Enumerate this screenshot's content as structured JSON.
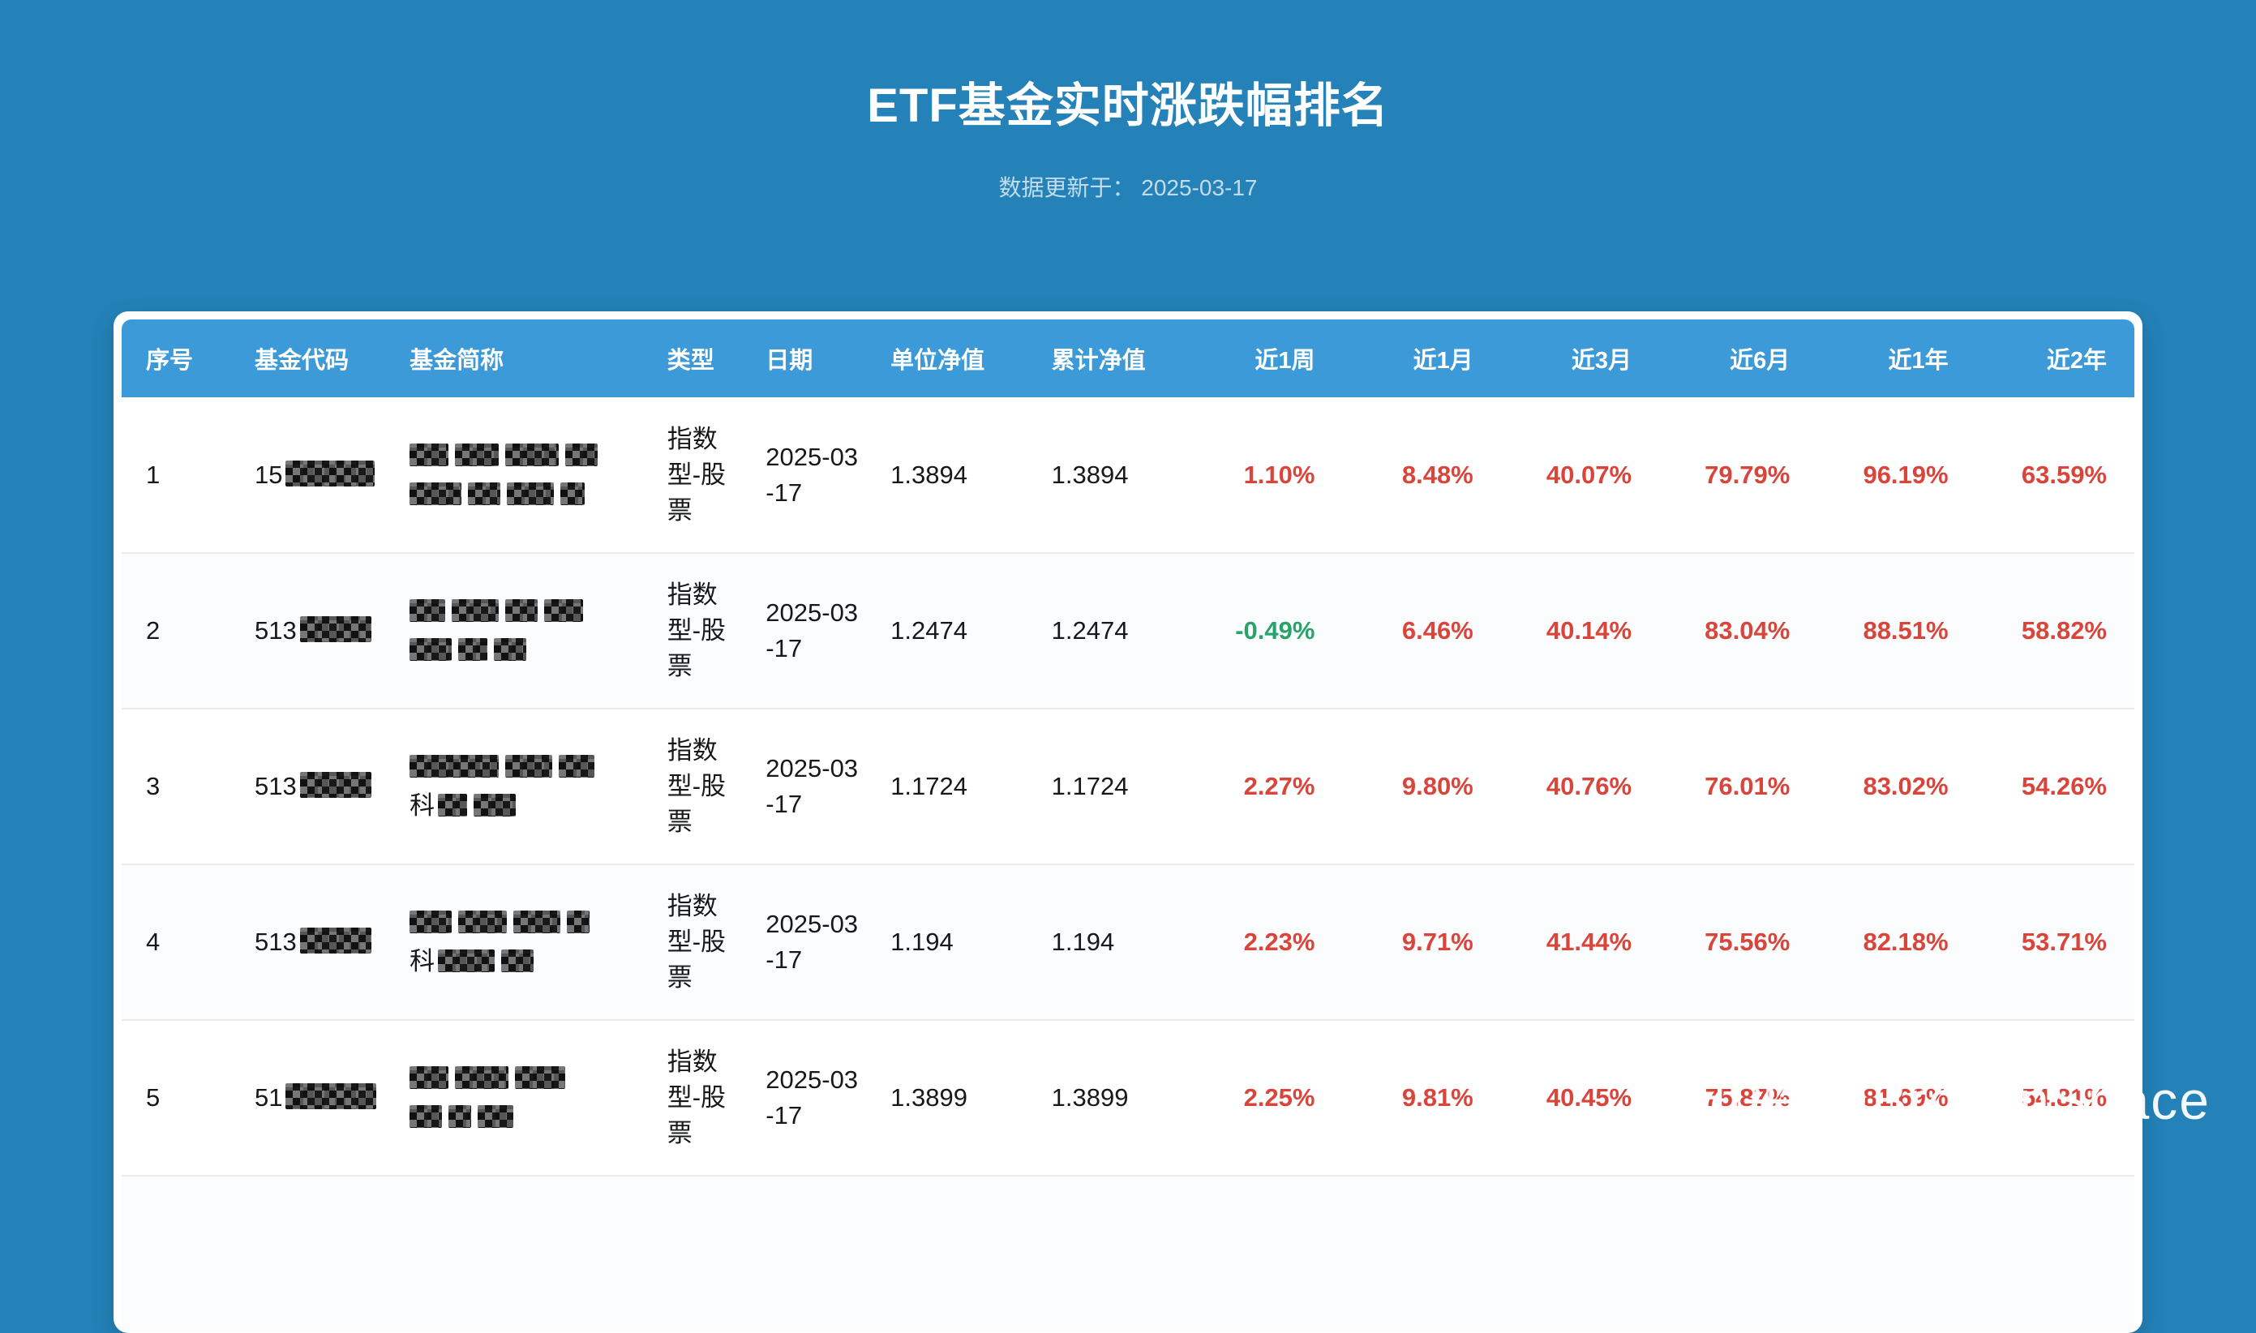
{
  "page": {
    "title": "ETF基金实时涨跌幅排名",
    "updated": "数据更新于： 2025-03-17",
    "watermark": "知乎 @BrokenSpace"
  },
  "colors": {
    "positive": "#d9453b",
    "negative": "#28a36a",
    "header_bg": "#3d9ad8",
    "page_bg": "#2482b8"
  },
  "table": {
    "headers": [
      "序号",
      "基金代码",
      "基金简称",
      "类型",
      "日期",
      "单位净值",
      "累计净值",
      "近1周",
      "近1月",
      "近3月",
      "近6月",
      "近1年",
      "近2年"
    ],
    "rows": [
      {
        "rank": "1",
        "code_visible": "15",
        "code_redact_w": 110,
        "name_lines": [
          {
            "prefix": "",
            "segments": [
              48,
              54,
              66,
              40
            ]
          },
          {
            "prefix": "",
            "segments": [
              64,
              40,
              58,
              30
            ]
          }
        ],
        "type": "指数型-股票",
        "date": "2025-03-17",
        "unit_nav": "1.3894",
        "acc_nav": "1.3894",
        "returns": [
          "1.10%",
          "8.48%",
          "40.07%",
          "79.79%",
          "96.19%",
          "63.59%"
        ]
      },
      {
        "rank": "2",
        "code_visible": "513",
        "code_redact_w": 88,
        "name_lines": [
          {
            "prefix": "",
            "segments": [
              44,
              58,
              40,
              48
            ]
          },
          {
            "prefix": "",
            "segments": [
              52,
              36,
              40
            ]
          }
        ],
        "type": "指数型-股票",
        "date": "2025-03-17",
        "unit_nav": "1.2474",
        "acc_nav": "1.2474",
        "returns": [
          "-0.49%",
          "6.46%",
          "40.14%",
          "83.04%",
          "88.51%",
          "58.82%"
        ]
      },
      {
        "rank": "3",
        "code_visible": "513",
        "code_redact_w": 88,
        "name_lines": [
          {
            "prefix": "",
            "segments": [
              110,
              58,
              44
            ]
          },
          {
            "prefix": "科",
            "segments": [
              36,
              52
            ]
          }
        ],
        "type": "指数型-股票",
        "date": "2025-03-17",
        "unit_nav": "1.1724",
        "acc_nav": "1.1724",
        "returns": [
          "2.27%",
          "9.80%",
          "40.76%",
          "76.01%",
          "83.02%",
          "54.26%"
        ]
      },
      {
        "rank": "4",
        "code_visible": "513",
        "code_redact_w": 88,
        "name_lines": [
          {
            "prefix": "",
            "segments": [
              52,
              60,
              58,
              28
            ]
          },
          {
            "prefix": "科",
            "segments": [
              70,
              40
            ]
          }
        ],
        "type": "指数型-股票",
        "date": "2025-03-17",
        "unit_nav": "1.194",
        "acc_nav": "1.194",
        "returns": [
          "2.23%",
          "9.71%",
          "41.44%",
          "75.56%",
          "82.18%",
          "53.71%"
        ]
      },
      {
        "rank": "5",
        "code_visible": "51",
        "code_redact_w": 112,
        "name_lines": [
          {
            "prefix": "",
            "segments": [
              48,
              66,
              62
            ]
          },
          {
            "prefix": "",
            "segments": [
              40,
              28,
              44
            ]
          }
        ],
        "type": "指数型-股票",
        "date": "2025-03-17",
        "unit_nav": "1.3899",
        "acc_nav": "1.3899",
        "returns": [
          "2.25%",
          "9.81%",
          "40.45%",
          "75.87%",
          "81.69%",
          "54.81%"
        ]
      }
    ]
  }
}
